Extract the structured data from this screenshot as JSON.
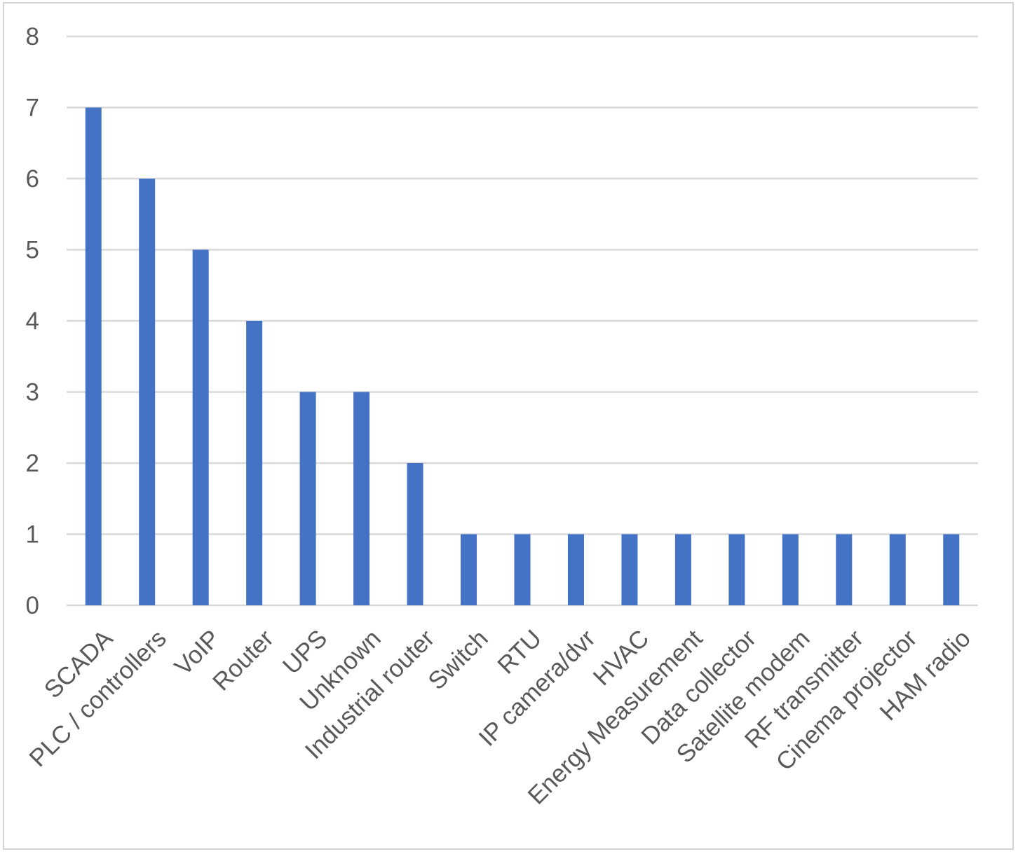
{
  "colors": {
    "bar": "#4472c4",
    "gridline": "#d9d9d9",
    "tick_text": "#595959",
    "frame": "#d4d4d4"
  },
  "chart_data": {
    "type": "bar",
    "title": "",
    "xlabel": "",
    "ylabel": "",
    "grid": true,
    "legend": "none",
    "ylim": [
      0,
      8
    ],
    "yticks": [
      "0",
      "1",
      "2",
      "3",
      "4",
      "5",
      "6",
      "7",
      "8"
    ],
    "categories": [
      "SCADA",
      "PLC / controllers",
      "VoIP",
      "Router",
      "UPS",
      "Unknown",
      "Industrial router",
      "Switch",
      "RTU",
      "IP camera/dvr",
      "HVAC",
      "Energy Measurement",
      "Data collector",
      "Satellite modem",
      "RF transmitter",
      "Cinema projector",
      "HAM radio"
    ],
    "values": [
      7,
      6,
      5,
      4,
      3,
      3,
      2,
      1,
      1,
      1,
      1,
      1,
      1,
      1,
      1,
      1,
      1
    ]
  }
}
